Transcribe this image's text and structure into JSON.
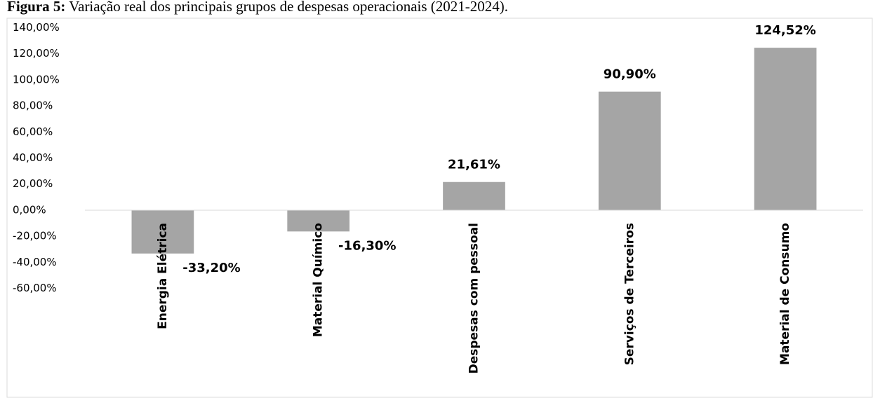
{
  "chart_data": {
    "type": "bar",
    "figure_label": "Figura 5:",
    "title": "Variação real dos principais grupos de despesas operacionais (2021-2024).",
    "categories": [
      "Energia Elétrica",
      "Material Químico",
      "Despesas com pessoal",
      "Serviços de Terceiros",
      "Material de Consumo"
    ],
    "values": [
      -33.2,
      -16.3,
      21.61,
      90.9,
      124.52
    ],
    "value_labels": [
      "-33,20%",
      "-16,30%",
      "21,61%",
      "90,90%",
      "124,52%"
    ],
    "color": "#a5a5a5",
    "ylim": [
      -60,
      140
    ],
    "yticks": [
      {
        "value": 140,
        "label": "140,00%"
      },
      {
        "value": 120,
        "label": "120,00%"
      },
      {
        "value": 100,
        "label": "100,00%"
      },
      {
        "value": 80,
        "label": "80,00%"
      },
      {
        "value": 60,
        "label": "60,00%"
      },
      {
        "value": 40,
        "label": "40,00%"
      },
      {
        "value": 20,
        "label": "20,00%"
      },
      {
        "value": 0,
        "label": "0,00%"
      },
      {
        "value": -20,
        "label": "-20,00%"
      },
      {
        "value": -40,
        "label": "-40,00%"
      },
      {
        "value": -60,
        "label": "-60,00%"
      }
    ],
    "grid": false
  }
}
